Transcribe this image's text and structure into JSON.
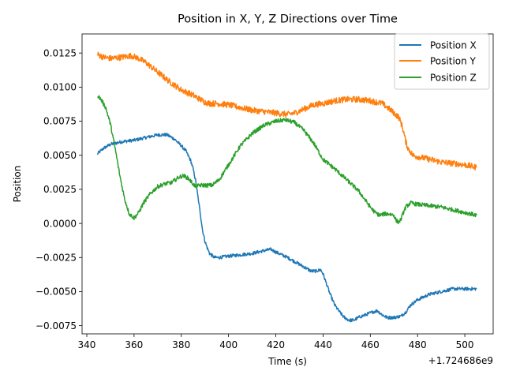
{
  "chart_data": {
    "type": "line",
    "title": "Position in X, Y, Z Directions over Time",
    "xlabel": "Time (s)",
    "ylabel": "Position",
    "x_offset_label": "+1.724686e9",
    "xlim": [
      338,
      512
    ],
    "ylim": [
      -0.0081,
      0.0139
    ],
    "xticks": [
      340,
      360,
      380,
      400,
      420,
      440,
      460,
      480,
      500
    ],
    "xtick_labels": [
      "340",
      "360",
      "380",
      "400",
      "420",
      "440",
      "460",
      "480",
      "500"
    ],
    "yticks": [
      -0.0075,
      -0.005,
      -0.0025,
      0.0,
      0.0025,
      0.005,
      0.0075,
      0.01,
      0.0125
    ],
    "ytick_labels": [
      "−0.0075",
      "−0.0050",
      "−0.0025",
      "0.0000",
      "0.0025",
      "0.0050",
      "0.0075",
      "0.0100",
      "0.0125"
    ],
    "grid": false,
    "legend_position": "upper-right",
    "series": [
      {
        "name": "Position X",
        "color": "#1f77b4",
        "noise": 0.00012,
        "x": [
          344.5,
          347,
          350,
          355,
          360,
          365,
          370,
          374,
          377,
          380,
          382,
          384,
          385,
          386,
          387,
          388,
          389,
          390,
          391,
          392,
          394,
          396,
          400,
          405,
          410,
          415,
          418,
          420,
          425,
          430,
          435,
          437,
          439,
          440,
          441,
          443,
          445,
          447,
          449,
          451,
          453,
          455,
          458,
          461,
          463,
          465,
          467,
          470,
          473,
          475,
          477,
          480,
          485,
          490,
          495,
          500,
          505
        ],
        "y": [
          0.0051,
          0.0055,
          0.0058,
          0.006,
          0.0061,
          0.0063,
          0.0065,
          0.0065,
          0.0062,
          0.0057,
          0.0053,
          0.0046,
          0.004,
          0.0032,
          0.002,
          0.0008,
          -0.0005,
          -0.0013,
          -0.0018,
          -0.0022,
          -0.0025,
          -0.0025,
          -0.0024,
          -0.0023,
          -0.0022,
          -0.002,
          -0.0019,
          -0.0021,
          -0.0025,
          -0.003,
          -0.0035,
          -0.0035,
          -0.0034,
          -0.0037,
          -0.0042,
          -0.0052,
          -0.006,
          -0.0065,
          -0.0069,
          -0.0071,
          -0.0071,
          -0.0069,
          -0.0067,
          -0.0065,
          -0.0064,
          -0.0067,
          -0.0069,
          -0.0069,
          -0.0068,
          -0.0065,
          -0.006,
          -0.0056,
          -0.0052,
          -0.005,
          -0.0048,
          -0.0048,
          -0.0048
        ]
      },
      {
        "name": "Position Y",
        "color": "#ff7f0e",
        "noise": 0.00022,
        "x": [
          344.5,
          347,
          350,
          355,
          359,
          362,
          365,
          370,
          375,
          380,
          385,
          390,
          392,
          395,
          400,
          405,
          410,
          415,
          420,
          425,
          428,
          432,
          436,
          440,
          445,
          450,
          455,
          460,
          465,
          468,
          470,
          472,
          473,
          474,
          475,
          476,
          478,
          480,
          485,
          490,
          495,
          500,
          505
        ],
        "y": [
          0.0124,
          0.0122,
          0.0121,
          0.0122,
          0.0123,
          0.0121,
          0.0118,
          0.0111,
          0.0104,
          0.0098,
          0.0094,
          0.0089,
          0.0088,
          0.0088,
          0.0087,
          0.0085,
          0.0083,
          0.0082,
          0.0081,
          0.008,
          0.0081,
          0.0084,
          0.0087,
          0.0088,
          0.009,
          0.0091,
          0.0091,
          0.009,
          0.0088,
          0.0084,
          0.0081,
          0.0078,
          0.0074,
          0.0068,
          0.006,
          0.0055,
          0.005,
          0.0049,
          0.0047,
          0.0045,
          0.0044,
          0.0043,
          0.0041
        ]
      },
      {
        "name": "Position Z",
        "color": "#2ca02c",
        "noise": 0.00015,
        "x": [
          344.5,
          346,
          348,
          350,
          352,
          354,
          356,
          358,
          360,
          362,
          364,
          367,
          370,
          373,
          376,
          379,
          381,
          383,
          385,
          386,
          388,
          390,
          393,
          396,
          400,
          405,
          410,
          415,
          420,
          424,
          428,
          432,
          436,
          440,
          445,
          450,
          455,
          460,
          462,
          464,
          466,
          468,
          470,
          471,
          472,
          473,
          474,
          475,
          477,
          480,
          485,
          490,
          495,
          500,
          505
        ],
        "y": [
          0.0094,
          0.0091,
          0.0085,
          0.0073,
          0.0055,
          0.0035,
          0.0018,
          0.0007,
          0.0004,
          0.0008,
          0.0015,
          0.0022,
          0.0027,
          0.0029,
          0.003,
          0.0034,
          0.0035,
          0.0033,
          0.0029,
          0.0027,
          0.0028,
          0.0028,
          0.0028,
          0.0032,
          0.0043,
          0.0057,
          0.0066,
          0.0072,
          0.0075,
          0.0076,
          0.0074,
          0.0068,
          0.0059,
          0.0047,
          0.004,
          0.0032,
          0.0024,
          0.0012,
          0.0008,
          0.0006,
          0.0007,
          0.0007,
          0.0006,
          0.0002,
          0.0001,
          0.0003,
          0.0008,
          0.0012,
          0.0015,
          0.0014,
          0.0013,
          0.0012,
          0.001,
          0.0008,
          0.0006
        ]
      }
    ]
  }
}
